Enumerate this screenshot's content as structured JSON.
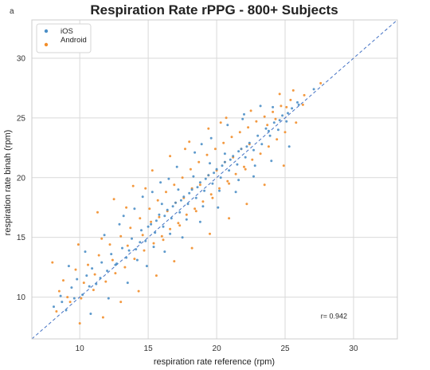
{
  "corner_label": "a",
  "chart_data": {
    "type": "scatter",
    "title": "Respiration Rate rPPG - 800+ Subjects",
    "xlabel": "respiration rate reference (rpm)",
    "ylabel": "respiration rate binah (rpm)",
    "xlim": [
      6.5,
      33.2
    ],
    "ylim": [
      6.5,
      33.2
    ],
    "xticks": [
      10,
      15,
      20,
      25,
      30
    ],
    "yticks": [
      10,
      15,
      20,
      25,
      30
    ],
    "grid": true,
    "legend_position": "top-left",
    "identity_line": true,
    "annotation": "r= 0.942",
    "annotation_at": [
      27.6,
      8.2
    ],
    "series": [
      {
        "name": "iOS",
        "color": "#4c8fc7",
        "points": [
          [
            8.1,
            9.2
          ],
          [
            8.6,
            10.1
          ],
          [
            9.0,
            8.9
          ],
          [
            9.4,
            10.8
          ],
          [
            9.8,
            11.5
          ],
          [
            10.2,
            10.2
          ],
          [
            10.5,
            11.8
          ],
          [
            10.9,
            12.4
          ],
          [
            11.2,
            11.1
          ],
          [
            11.6,
            12.9
          ],
          [
            12.0,
            12.2
          ],
          [
            12.3,
            13.6
          ],
          [
            12.7,
            12.8
          ],
          [
            13.1,
            14.1
          ],
          [
            13.4,
            13.3
          ],
          [
            13.8,
            14.9
          ],
          [
            14.1,
            14.0
          ],
          [
            14.5,
            15.6
          ],
          [
            14.8,
            14.7
          ],
          [
            15.2,
            16.1
          ],
          [
            15.5,
            15.4
          ],
          [
            15.8,
            16.9
          ],
          [
            16.1,
            15.9
          ],
          [
            16.4,
            17.3
          ],
          [
            16.7,
            16.6
          ],
          [
            17.0,
            17.9
          ],
          [
            17.3,
            17.1
          ],
          [
            17.6,
            18.4
          ],
          [
            17.9,
            17.8
          ],
          [
            18.2,
            19.0
          ],
          [
            18.5,
            18.3
          ],
          [
            18.8,
            19.6
          ],
          [
            19.1,
            18.9
          ],
          [
            19.4,
            20.2
          ],
          [
            19.7,
            19.5
          ],
          [
            20.0,
            20.7
          ],
          [
            20.3,
            20.0
          ],
          [
            20.6,
            21.3
          ],
          [
            20.9,
            20.6
          ],
          [
            21.2,
            21.8
          ],
          [
            21.5,
            21.1
          ],
          [
            21.8,
            22.4
          ],
          [
            22.1,
            21.7
          ],
          [
            22.4,
            22.9
          ],
          [
            22.7,
            22.3
          ],
          [
            23.0,
            23.5
          ],
          [
            23.3,
            22.8
          ],
          [
            23.6,
            24.1
          ],
          [
            23.9,
            23.5
          ],
          [
            24.2,
            24.6
          ],
          [
            24.5,
            24.0
          ],
          [
            24.8,
            25.2
          ],
          [
            25.1,
            24.7
          ],
          [
            25.5,
            25.8
          ],
          [
            25.9,
            26.3
          ],
          [
            9.2,
            12.6
          ],
          [
            10.4,
            13.8
          ],
          [
            11.8,
            15.2
          ],
          [
            13.2,
            16.8
          ],
          [
            14.6,
            18.4
          ],
          [
            15.9,
            19.6
          ],
          [
            17.1,
            20.9
          ],
          [
            18.4,
            22.1
          ],
          [
            19.6,
            23.3
          ],
          [
            20.8,
            24.4
          ],
          [
            22.0,
            25.3
          ],
          [
            23.2,
            26.0
          ],
          [
            10.8,
            8.6
          ],
          [
            12.1,
            9.9
          ],
          [
            13.5,
            11.2
          ],
          [
            14.9,
            12.6
          ],
          [
            16.2,
            13.8
          ],
          [
            17.5,
            15.0
          ],
          [
            18.8,
            16.3
          ],
          [
            20.1,
            17.5
          ],
          [
            21.4,
            18.8
          ],
          [
            22.7,
            20.1
          ],
          [
            24.0,
            21.4
          ],
          [
            25.3,
            22.6
          ],
          [
            15.0,
            15.9
          ],
          [
            15.6,
            16.4
          ],
          [
            16.2,
            16.8
          ],
          [
            16.8,
            17.6
          ],
          [
            17.4,
            18.1
          ],
          [
            18.0,
            18.7
          ],
          [
            18.6,
            19.2
          ],
          [
            19.2,
            19.9
          ],
          [
            19.8,
            20.4
          ],
          [
            20.4,
            21.0
          ],
          [
            21.0,
            21.5
          ],
          [
            21.6,
            22.2
          ],
          [
            22.2,
            22.6
          ],
          [
            16.0,
            17.8
          ],
          [
            17.2,
            19.0
          ],
          [
            18.3,
            20.1
          ],
          [
            19.5,
            21.2
          ],
          [
            20.6,
            22.0
          ],
          [
            14.2,
            13.1
          ],
          [
            15.4,
            14.2
          ],
          [
            16.6,
            15.3
          ],
          [
            17.8,
            16.5
          ],
          [
            19.0,
            17.6
          ],
          [
            20.2,
            18.9
          ],
          [
            21.6,
            19.8
          ],
          [
            22.8,
            21.0
          ],
          [
            8.7,
            9.6
          ],
          [
            9.6,
            9.9
          ],
          [
            10.7,
            10.9
          ],
          [
            11.5,
            11.6
          ],
          [
            12.6,
            12.7
          ],
          [
            13.6,
            13.9
          ],
          [
            14.4,
            14.6
          ],
          [
            23.8,
            23.9
          ],
          [
            24.6,
            24.8
          ],
          [
            25.2,
            25.4
          ],
          [
            26.0,
            26.1
          ],
          [
            27.1,
            27.4
          ],
          [
            12.9,
            16.1
          ],
          [
            14.0,
            17.4
          ],
          [
            15.3,
            18.8
          ],
          [
            16.5,
            19.9
          ],
          [
            18.9,
            22.8
          ],
          [
            21.9,
            24.9
          ],
          [
            24.1,
            25.9
          ]
        ]
      },
      {
        "name": "Android",
        "color": "#f28e2b",
        "points": [
          [
            8.3,
            8.8
          ],
          [
            8.8,
            11.4
          ],
          [
            9.3,
            9.6
          ],
          [
            9.7,
            12.3
          ],
          [
            10.1,
            9.9
          ],
          [
            10.6,
            12.7
          ],
          [
            11.0,
            10.6
          ],
          [
            11.4,
            13.5
          ],
          [
            11.9,
            11.3
          ],
          [
            12.2,
            14.4
          ],
          [
            12.6,
            12.0
          ],
          [
            13.0,
            15.1
          ],
          [
            13.3,
            12.5
          ],
          [
            13.7,
            15.8
          ],
          [
            14.0,
            13.2
          ],
          [
            14.4,
            16.6
          ],
          [
            14.7,
            13.9
          ],
          [
            15.1,
            17.4
          ],
          [
            15.4,
            14.5
          ],
          [
            15.7,
            18.1
          ],
          [
            16.0,
            15.1
          ],
          [
            16.3,
            18.8
          ],
          [
            16.6,
            15.7
          ],
          [
            16.9,
            19.4
          ],
          [
            17.2,
            16.2
          ],
          [
            17.5,
            20.0
          ],
          [
            17.8,
            16.9
          ],
          [
            18.1,
            20.7
          ],
          [
            18.4,
            17.4
          ],
          [
            18.7,
            21.3
          ],
          [
            19.0,
            18.0
          ],
          [
            19.3,
            21.9
          ],
          [
            19.6,
            18.6
          ],
          [
            19.9,
            22.4
          ],
          [
            20.2,
            19.1
          ],
          [
            20.5,
            22.9
          ],
          [
            20.8,
            19.7
          ],
          [
            21.1,
            23.4
          ],
          [
            21.4,
            20.3
          ],
          [
            21.7,
            23.8
          ],
          [
            22.0,
            20.9
          ],
          [
            22.3,
            24.2
          ],
          [
            22.6,
            21.5
          ],
          [
            22.9,
            24.7
          ],
          [
            23.2,
            22.0
          ],
          [
            23.5,
            25.1
          ],
          [
            23.8,
            22.6
          ],
          [
            24.1,
            25.5
          ],
          [
            24.4,
            23.2
          ],
          [
            24.7,
            26.0
          ],
          [
            25.0,
            23.8
          ],
          [
            25.4,
            26.5
          ],
          [
            25.8,
            24.6
          ],
          [
            26.3,
            26.1
          ],
          [
            8.0,
            12.9
          ],
          [
            9.9,
            14.4
          ],
          [
            11.3,
            17.1
          ],
          [
            12.5,
            18.2
          ],
          [
            13.9,
            19.3
          ],
          [
            15.3,
            20.6
          ],
          [
            16.6,
            21.8
          ],
          [
            18.0,
            23.0
          ],
          [
            19.4,
            24.1
          ],
          [
            20.7,
            25.0
          ],
          [
            10.0,
            7.8
          ],
          [
            11.7,
            8.3
          ],
          [
            13.0,
            9.6
          ],
          [
            14.3,
            10.5
          ],
          [
            15.6,
            11.8
          ],
          [
            16.9,
            13.0
          ],
          [
            18.2,
            14.1
          ],
          [
            19.5,
            15.3
          ],
          [
            20.9,
            16.6
          ],
          [
            22.2,
            17.8
          ],
          [
            23.5,
            19.4
          ],
          [
            24.9,
            21.0
          ],
          [
            15.2,
            16.3
          ],
          [
            15.8,
            16.7
          ],
          [
            16.4,
            17.2
          ],
          [
            17.0,
            17.9
          ],
          [
            17.6,
            18.3
          ],
          [
            18.2,
            19.1
          ],
          [
            18.8,
            19.4
          ],
          [
            19.4,
            20.2
          ],
          [
            20.0,
            20.6
          ],
          [
            20.6,
            21.3
          ],
          [
            21.2,
            21.7
          ],
          [
            21.8,
            22.4
          ],
          [
            22.4,
            22.8
          ],
          [
            16.1,
            14.8
          ],
          [
            17.3,
            16.0
          ],
          [
            18.5,
            17.2
          ],
          [
            19.7,
            18.3
          ],
          [
            20.9,
            19.5
          ],
          [
            22.1,
            20.7
          ],
          [
            8.5,
            10.5
          ],
          [
            9.1,
            10.0
          ],
          [
            10.3,
            11.2
          ],
          [
            11.1,
            11.9
          ],
          [
            12.4,
            13.1
          ],
          [
            13.5,
            14.3
          ],
          [
            14.6,
            15.2
          ],
          [
            23.7,
            24.4
          ],
          [
            24.3,
            24.9
          ],
          [
            25.1,
            25.9
          ],
          [
            25.6,
            27.3
          ],
          [
            26.4,
            26.9
          ],
          [
            27.6,
            27.9
          ],
          [
            11.6,
            14.9
          ],
          [
            13.4,
            17.5
          ],
          [
            14.8,
            19.1
          ],
          [
            17.7,
            22.4
          ],
          [
            20.3,
            24.6
          ],
          [
            22.5,
            25.6
          ],
          [
            24.6,
            27.0
          ]
        ]
      }
    ]
  }
}
